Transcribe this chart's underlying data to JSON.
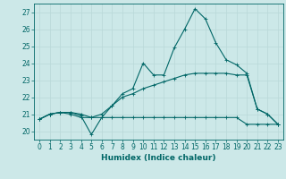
{
  "xlabel": "Humidex (Indice chaleur)",
  "ylabel": "",
  "bg_color": "#cce8e8",
  "grid_color": "#b8d8d8",
  "line_color": "#006666",
  "xlim": [
    -0.5,
    23.5
  ],
  "ylim": [
    19.5,
    27.5
  ],
  "yticks": [
    20,
    21,
    22,
    23,
    24,
    25,
    26,
    27
  ],
  "xticks": [
    0,
    1,
    2,
    3,
    4,
    5,
    6,
    7,
    8,
    9,
    10,
    11,
    12,
    13,
    14,
    15,
    16,
    17,
    18,
    19,
    20,
    21,
    22,
    23
  ],
  "series1_x": [
    0,
    1,
    2,
    3,
    4,
    5,
    6,
    7,
    8,
    9,
    10,
    11,
    12,
    13,
    14,
    15,
    16,
    17,
    18,
    19,
    20,
    21,
    22,
    23
  ],
  "series1_y": [
    20.7,
    21.0,
    21.1,
    21.1,
    20.9,
    19.8,
    20.8,
    21.5,
    22.2,
    22.5,
    24.0,
    23.3,
    23.3,
    24.9,
    26.0,
    27.2,
    26.6,
    25.2,
    24.2,
    23.9,
    23.4,
    21.3,
    21.0,
    20.4
  ],
  "series2_x": [
    0,
    1,
    2,
    3,
    4,
    5,
    6,
    7,
    8,
    9,
    10,
    11,
    12,
    13,
    14,
    15,
    16,
    17,
    18,
    19,
    20,
    21,
    22,
    23
  ],
  "series2_y": [
    20.7,
    21.0,
    21.1,
    21.0,
    20.8,
    20.8,
    20.8,
    20.8,
    20.8,
    20.8,
    20.8,
    20.8,
    20.8,
    20.8,
    20.8,
    20.8,
    20.8,
    20.8,
    20.8,
    20.8,
    20.4,
    20.4,
    20.4,
    20.4
  ],
  "series3_x": [
    0,
    1,
    2,
    3,
    4,
    5,
    6,
    7,
    8,
    9,
    10,
    11,
    12,
    13,
    14,
    15,
    16,
    17,
    18,
    19,
    20,
    21,
    22,
    23
  ],
  "series3_y": [
    20.7,
    21.0,
    21.1,
    21.1,
    21.0,
    20.8,
    21.0,
    21.5,
    22.0,
    22.2,
    22.5,
    22.7,
    22.9,
    23.1,
    23.3,
    23.4,
    23.4,
    23.4,
    23.4,
    23.3,
    23.3,
    21.3,
    21.0,
    20.4
  ]
}
